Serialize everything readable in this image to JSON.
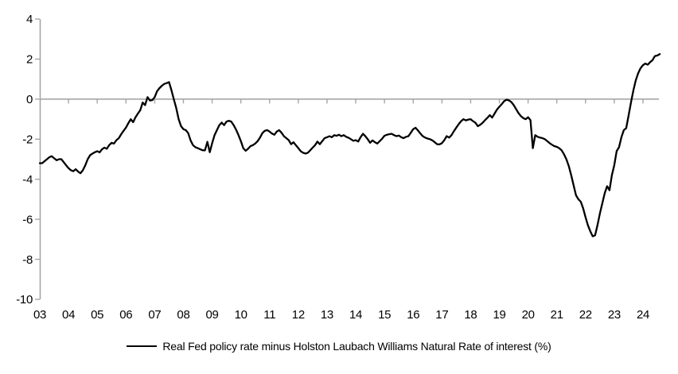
{
  "page": {
    "background": "#ffffff"
  },
  "chart_data": {
    "type": "line",
    "title": "",
    "x_frequency": "monthly",
    "x_start": "2003-01",
    "x_end": "2024-08",
    "x_tick_labels": [
      "03",
      "04",
      "05",
      "06",
      "07",
      "08",
      "09",
      "10",
      "11",
      "12",
      "13",
      "14",
      "15",
      "16",
      "17",
      "18",
      "19",
      "20",
      "21",
      "22",
      "23",
      "24"
    ],
    "ylim": [
      -10,
      4
    ],
    "yticks": [
      4,
      2,
      0,
      -2,
      -4,
      -6,
      -8,
      -10
    ],
    "grid": "zero-line-only",
    "axis_color": "#a6a6a6",
    "legend_position": "bottom-center",
    "series": [
      {
        "name": "Real Fed policy rate minus Holston Laubach Williams Natural Rate of interest (%)",
        "color": "#000000",
        "values": [
          -3.2,
          -3.2,
          -3.1,
          -3.0,
          -2.9,
          -2.85,
          -2.95,
          -3.05,
          -3.0,
          -3.0,
          -3.15,
          -3.3,
          -3.45,
          -3.55,
          -3.6,
          -3.5,
          -3.62,
          -3.7,
          -3.55,
          -3.3,
          -3.0,
          -2.8,
          -2.72,
          -2.65,
          -2.6,
          -2.66,
          -2.5,
          -2.42,
          -2.48,
          -2.3,
          -2.18,
          -2.22,
          -2.05,
          -1.95,
          -1.75,
          -1.58,
          -1.42,
          -1.2,
          -1.0,
          -1.15,
          -0.9,
          -0.72,
          -0.55,
          -0.17,
          -0.3,
          0.1,
          -0.07,
          -0.05,
          0.1,
          0.4,
          0.55,
          0.67,
          0.76,
          0.8,
          0.85,
          0.45,
          0.0,
          -0.45,
          -1.0,
          -1.35,
          -1.5,
          -1.55,
          -1.7,
          -2.06,
          -2.3,
          -2.4,
          -2.45,
          -2.5,
          -2.55,
          -2.56,
          -2.13,
          -2.65,
          -2.2,
          -1.8,
          -1.55,
          -1.3,
          -1.17,
          -1.3,
          -1.12,
          -1.08,
          -1.12,
          -1.3,
          -1.53,
          -1.8,
          -2.1,
          -2.45,
          -2.58,
          -2.48,
          -2.35,
          -2.3,
          -2.22,
          -2.1,
          -1.92,
          -1.7,
          -1.58,
          -1.55,
          -1.62,
          -1.72,
          -1.78,
          -1.62,
          -1.55,
          -1.68,
          -1.85,
          -1.95,
          -2.05,
          -2.25,
          -2.15,
          -2.3,
          -2.45,
          -2.6,
          -2.68,
          -2.72,
          -2.68,
          -2.55,
          -2.42,
          -2.3,
          -2.12,
          -2.25,
          -2.1,
          -1.95,
          -1.9,
          -1.85,
          -1.9,
          -1.8,
          -1.83,
          -1.78,
          -1.85,
          -1.8,
          -1.88,
          -1.93,
          -2.0,
          -2.08,
          -2.05,
          -2.12,
          -1.9,
          -1.73,
          -1.85,
          -2.0,
          -2.18,
          -2.06,
          -2.15,
          -2.22,
          -2.1,
          -1.98,
          -1.83,
          -1.78,
          -1.75,
          -1.73,
          -1.8,
          -1.85,
          -1.82,
          -1.9,
          -1.95,
          -1.88,
          -1.85,
          -1.68,
          -1.5,
          -1.43,
          -1.57,
          -1.72,
          -1.85,
          -1.92,
          -1.97,
          -2.0,
          -2.06,
          -2.15,
          -2.25,
          -2.26,
          -2.2,
          -2.05,
          -1.85,
          -1.92,
          -1.8,
          -1.6,
          -1.42,
          -1.25,
          -1.1,
          -1.0,
          -1.06,
          -1.02,
          -1.0,
          -1.1,
          -1.18,
          -1.35,
          -1.28,
          -1.18,
          -1.05,
          -0.93,
          -0.8,
          -0.92,
          -0.72,
          -0.52,
          -0.38,
          -0.25,
          -0.1,
          -0.03,
          -0.06,
          -0.15,
          -0.3,
          -0.5,
          -0.7,
          -0.85,
          -0.95,
          -1.0,
          -0.9,
          -1.05,
          -2.45,
          -1.8,
          -1.88,
          -1.92,
          -1.95,
          -2.0,
          -2.1,
          -2.2,
          -2.28,
          -2.35,
          -2.38,
          -2.45,
          -2.55,
          -2.75,
          -3.0,
          -3.35,
          -3.8,
          -4.3,
          -4.8,
          -5.0,
          -5.12,
          -5.45,
          -5.9,
          -6.3,
          -6.6,
          -6.85,
          -6.8,
          -6.3,
          -5.7,
          -5.2,
          -4.7,
          -4.35,
          -4.55,
          -3.8,
          -3.3,
          -2.6,
          -2.4,
          -1.9,
          -1.55,
          -1.45,
          -0.8,
          -0.15,
          0.45,
          0.95,
          1.3,
          1.55,
          1.7,
          1.78,
          1.72,
          1.85,
          1.95,
          2.15,
          2.18,
          2.25
        ]
      }
    ]
  }
}
